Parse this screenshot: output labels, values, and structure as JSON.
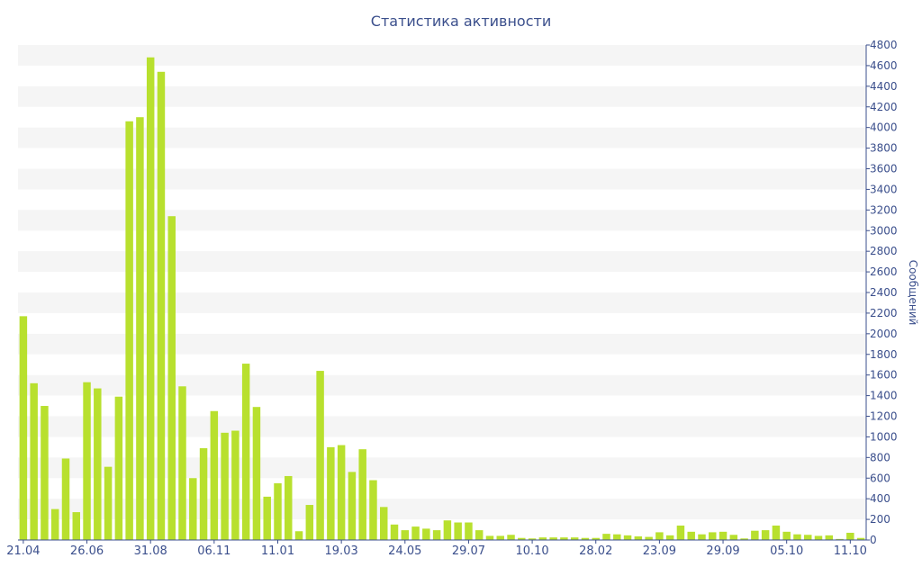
{
  "chart_data": {
    "type": "bar",
    "title": "Статистика активности",
    "ylabel": "Сообщений",
    "xlabel": "",
    "ylim": [
      0,
      4800
    ],
    "yticks": [
      0,
      200,
      400,
      600,
      800,
      1000,
      1200,
      1400,
      1600,
      1800,
      2000,
      2200,
      2400,
      2600,
      2800,
      3000,
      3200,
      3400,
      3600,
      3800,
      4000,
      4200,
      4400,
      4600,
      4800
    ],
    "xtick_labels": [
      {
        "index": 0,
        "label": "21.04"
      },
      {
        "index": 6,
        "label": "26.06"
      },
      {
        "index": 12,
        "label": "31.08"
      },
      {
        "index": 18,
        "label": "06.11"
      },
      {
        "index": 24,
        "label": "11.01"
      },
      {
        "index": 30,
        "label": "19.03"
      },
      {
        "index": 36,
        "label": "24.05"
      },
      {
        "index": 42,
        "label": "29.07"
      },
      {
        "index": 48,
        "label": "10.10"
      },
      {
        "index": 54,
        "label": "28.02"
      },
      {
        "index": 60,
        "label": "23.09"
      },
      {
        "index": 66,
        "label": "29.09"
      },
      {
        "index": 72,
        "label": "05.10"
      },
      {
        "index": 78,
        "label": "11.10"
      }
    ],
    "values": [
      2170,
      1520,
      1300,
      300,
      790,
      270,
      1530,
      1470,
      710,
      1390,
      4060,
      4100,
      4680,
      4540,
      3140,
      1490,
      600,
      890,
      1250,
      1040,
      1060,
      1710,
      1290,
      420,
      550,
      620,
      85,
      340,
      1640,
      900,
      920,
      660,
      880,
      580,
      320,
      150,
      95,
      130,
      110,
      95,
      190,
      170,
      170,
      95,
      40,
      40,
      50,
      20,
      15,
      25,
      25,
      25,
      25,
      20,
      20,
      60,
      55,
      45,
      35,
      30,
      75,
      45,
      140,
      80,
      55,
      75,
      80,
      50,
      15,
      90,
      95,
      140,
      80,
      55,
      50,
      40,
      45,
      10,
      70,
      20
    ],
    "grid": "horizontal bands",
    "colors": {
      "bar": "#b8e02e",
      "band": "#f5f5f5",
      "text": "#3b4f8c",
      "axis": "#3b4f8c"
    }
  }
}
